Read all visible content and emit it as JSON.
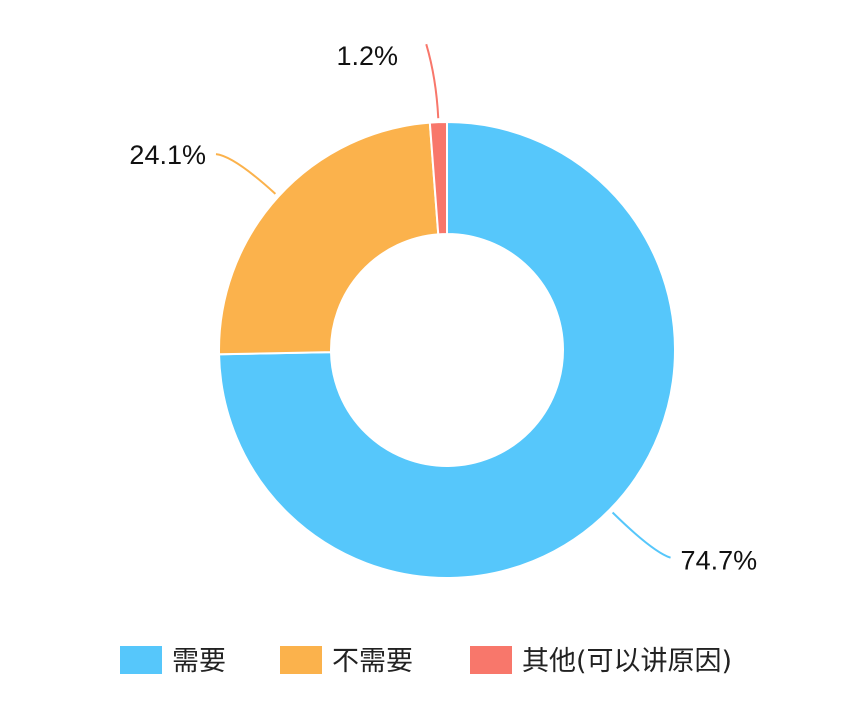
{
  "chart_data": {
    "type": "pie",
    "variant": "donut",
    "categories": [
      "需要",
      "不需要",
      "其他(可以讲原因)"
    ],
    "values": [
      74.7,
      24.1,
      1.2
    ],
    "labels": [
      "74.7%",
      "24.1%",
      "1.2%"
    ],
    "colors": [
      "#56c7fb",
      "#fbb24c",
      "#f8776b"
    ],
    "title": "",
    "legend_position": "bottom"
  }
}
